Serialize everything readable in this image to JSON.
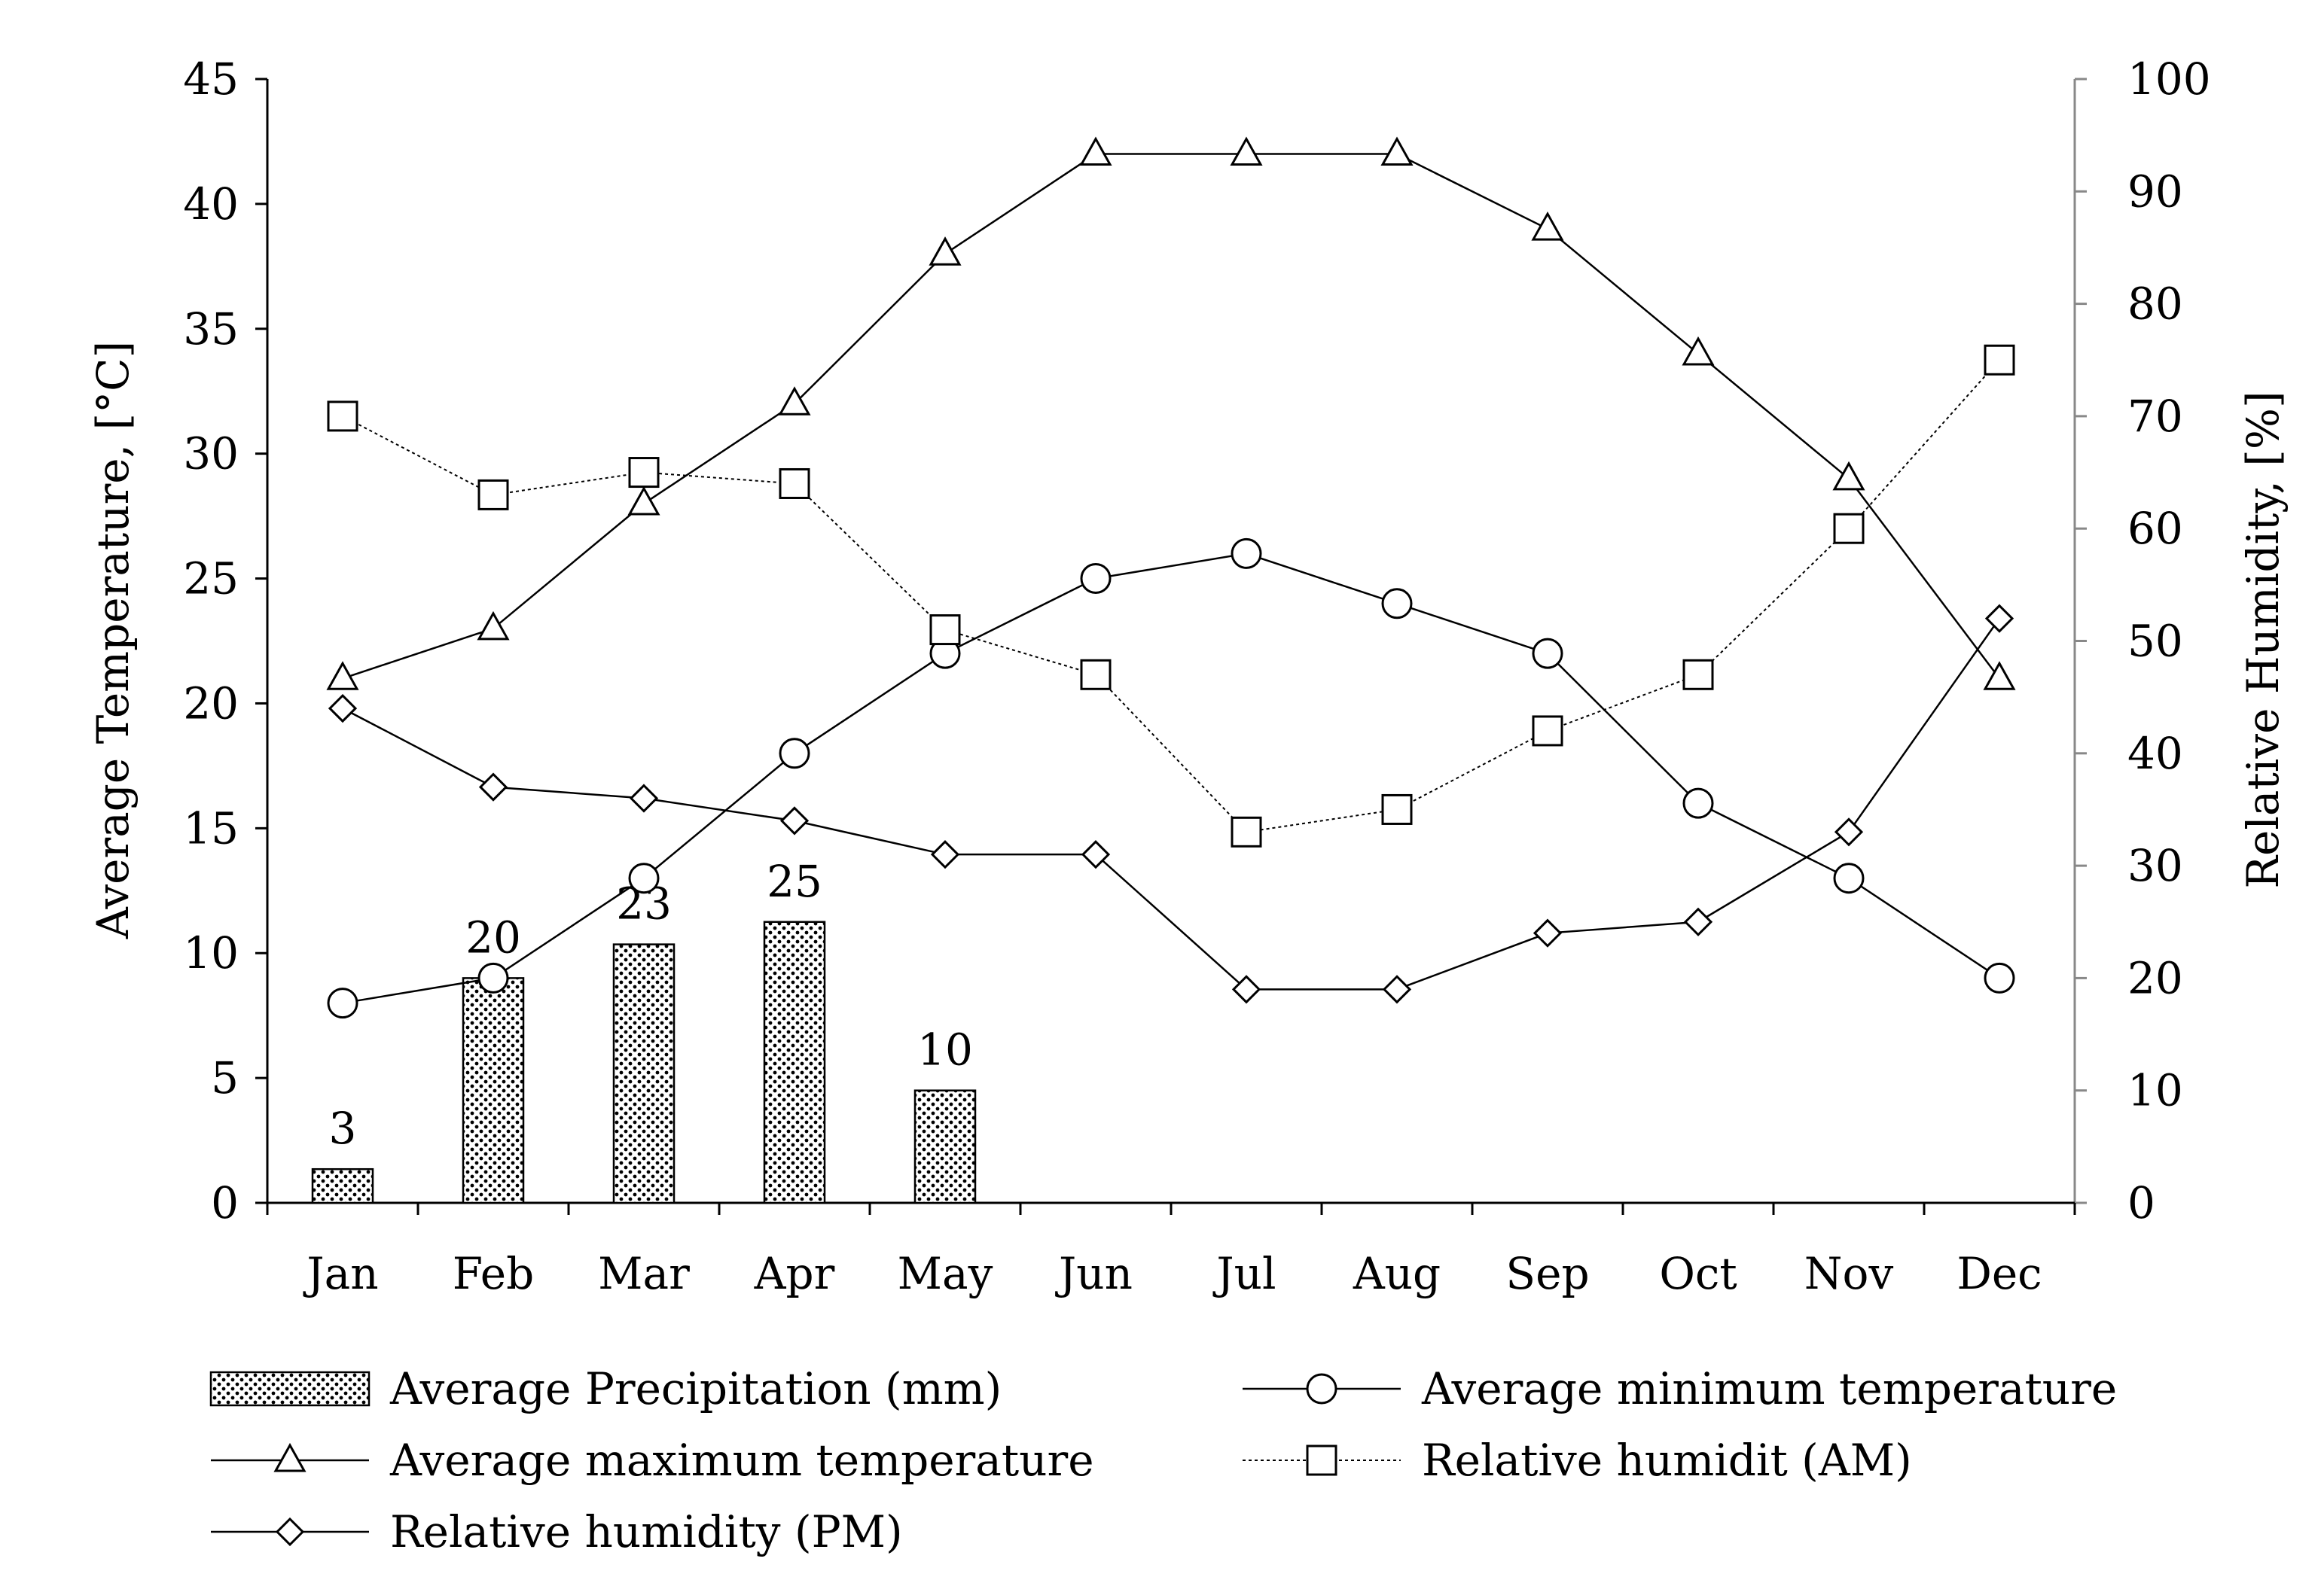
{
  "chart_data": {
    "type": "bar",
    "categories": [
      "Jan",
      "Feb",
      "Mar",
      "Apr",
      "May",
      "Jun",
      "Jul",
      "Aug",
      "Sep",
      "Oct",
      "Nov",
      "Dec"
    ],
    "y_left": {
      "label": "Average Temperature, [°C]",
      "min": 0,
      "max": 45,
      "step": 5,
      "ticks": [
        "0",
        "5",
        "10",
        "15",
        "20",
        "25",
        "30",
        "35",
        "40",
        "45"
      ]
    },
    "y_right": {
      "label": "Relative Humidity, [%]",
      "min": 0,
      "max": 100,
      "step": 10,
      "ticks": [
        "0",
        "10",
        "20",
        "30",
        "40",
        "50",
        "60",
        "70",
        "80",
        "90",
        "100"
      ]
    },
    "series": [
      {
        "name": "Average Precipitation (mm)",
        "kind": "bar",
        "axis": "left",
        "values": [
          3,
          20,
          23,
          25,
          10,
          null,
          null,
          null,
          null,
          null,
          null,
          null
        ],
        "data_labels": [
          "3",
          "20",
          "23",
          "25",
          "10",
          "",
          "",
          "",
          "",
          "",
          "",
          ""
        ],
        "plotted_heights": [
          1.35,
          9.0,
          10.35,
          11.25,
          4.5,
          null,
          null,
          null,
          null,
          null,
          null,
          null
        ]
      },
      {
        "name": "Average minimum temperature",
        "kind": "line",
        "marker": "circle",
        "dash": "solid",
        "axis": "left",
        "values": [
          8,
          9,
          13,
          18,
          22,
          25,
          26,
          24,
          22,
          16,
          13,
          9
        ]
      },
      {
        "name": "Average maximum temperature",
        "kind": "line",
        "marker": "triangle",
        "dash": "solid",
        "axis": "left",
        "values": [
          21,
          23,
          28,
          32,
          38,
          42,
          42,
          42,
          39,
          34,
          29,
          21
        ]
      },
      {
        "name": "Relative humidit (AM)",
        "kind": "line",
        "marker": "square",
        "dash": "dotted",
        "axis": "right",
        "values": [
          70,
          63,
          65,
          64,
          51,
          47,
          33,
          35,
          42,
          47,
          60,
          75
        ]
      },
      {
        "name": "Relative humidity (PM)",
        "kind": "line",
        "marker": "diamond",
        "dash": "solid",
        "axis": "right",
        "values": [
          44,
          37,
          36,
          34,
          31,
          31,
          19,
          19,
          24,
          25,
          33,
          52
        ]
      }
    ],
    "legend": {
      "placement": "bottom",
      "order": [
        "Average Precipitation (mm)",
        "Average minimum temperature",
        "Average maximum temperature",
        "Relative humidit (AM)",
        "Relative humidity (PM)"
      ]
    },
    "colors": {
      "ink": "#000000",
      "bar_fill": "#ffffff"
    }
  }
}
